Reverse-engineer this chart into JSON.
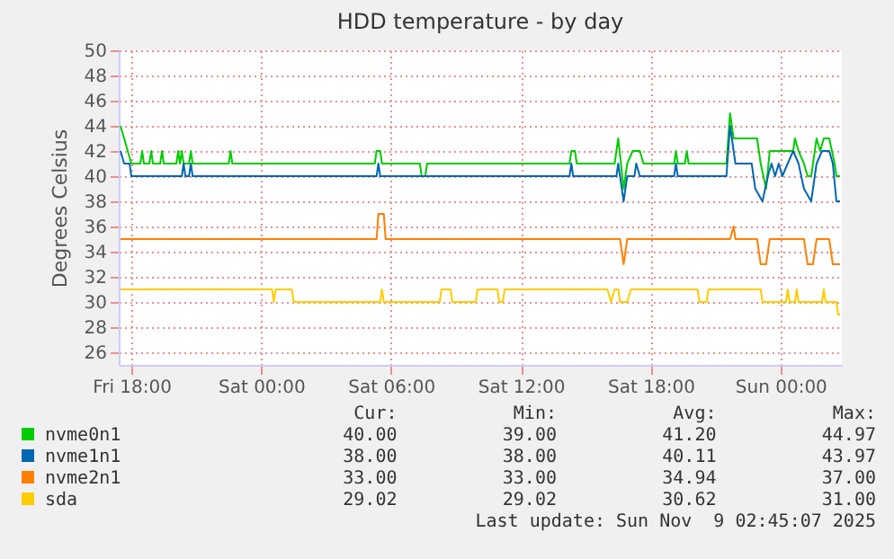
{
  "chart_data": {
    "type": "line",
    "title": "HDD temperature - by day",
    "ylabel": "Degrees Celsius",
    "xlim": [
      "2025-11-07T17:25",
      "2025-11-09T02:50"
    ],
    "xticks": [
      {
        "value": "2025-11-07T18:00",
        "label": "Fri 18:00"
      },
      {
        "value": "2025-11-08T00:00",
        "label": "Sat 00:00"
      },
      {
        "value": "2025-11-08T06:00",
        "label": "Sat 06:00"
      },
      {
        "value": "2025-11-08T12:00",
        "label": "Sat 12:00"
      },
      {
        "value": "2025-11-08T18:00",
        "label": "Sat 18:00"
      },
      {
        "value": "2025-11-09T00:00",
        "label": "Sun 00:00"
      }
    ],
    "ylim": [
      25,
      50
    ],
    "yticks": [
      26,
      28,
      30,
      32,
      34,
      36,
      38,
      40,
      42,
      44,
      46,
      48,
      50
    ],
    "grid": true,
    "legend": "bottom",
    "series": [
      {
        "name": "nvme0n1",
        "color": "#00cc00",
        "x": [
          "2025-11-07T17:30",
          "2025-11-07T17:40",
          "2025-11-07T17:50",
          "2025-11-07T18:00",
          "2025-11-07T18:25",
          "2025-11-07T18:30",
          "2025-11-07T18:35",
          "2025-11-07T18:50",
          "2025-11-07T18:55",
          "2025-11-07T19:00",
          "2025-11-07T19:20",
          "2025-11-07T19:25",
          "2025-11-07T19:30",
          "2025-11-07T20:05",
          "2025-11-07T20:10",
          "2025-11-07T20:15",
          "2025-11-07T20:20",
          "2025-11-07T20:25",
          "2025-11-07T20:40",
          "2025-11-07T20:45",
          "2025-11-07T20:50",
          "2025-11-07T22:30",
          "2025-11-07T22:35",
          "2025-11-07T22:40",
          "2025-11-08T05:15",
          "2025-11-08T05:20",
          "2025-11-08T05:30",
          "2025-11-08T05:35",
          "2025-11-08T07:20",
          "2025-11-08T07:25",
          "2025-11-08T07:35",
          "2025-11-08T07:40",
          "2025-11-08T14:15",
          "2025-11-08T14:20",
          "2025-11-08T14:30",
          "2025-11-08T14:35",
          "2025-11-08T16:20",
          "2025-11-08T16:30",
          "2025-11-08T16:45",
          "2025-11-08T16:55",
          "2025-11-08T17:10",
          "2025-11-08T17:30",
          "2025-11-08T17:40",
          "2025-11-08T19:05",
          "2025-11-08T19:10",
          "2025-11-08T19:15",
          "2025-11-08T19:35",
          "2025-11-08T19:40",
          "2025-11-08T19:45",
          "2025-11-08T21:30",
          "2025-11-08T21:40",
          "2025-11-08T21:50",
          "2025-11-08T22:15",
          "2025-11-08T22:55",
          "2025-11-08T23:05",
          "2025-11-08T23:20",
          "2025-11-08T23:30",
          "2025-11-09T00:35",
          "2025-11-09T00:40",
          "2025-11-09T00:50",
          "2025-11-09T01:05",
          "2025-11-09T01:15",
          "2025-11-09T01:25",
          "2025-11-09T01:40",
          "2025-11-09T01:50",
          "2025-11-09T02:00",
          "2025-11-09T02:15",
          "2025-11-09T02:30",
          "2025-11-09T02:35",
          "2025-11-09T02:45"
        ],
        "values": [
          44,
          43,
          42,
          41,
          41,
          42,
          41,
          41,
          42,
          41,
          41,
          42,
          41,
          41,
          42,
          41,
          42,
          41,
          41,
          42,
          41,
          41,
          42,
          41,
          41,
          42,
          42,
          41,
          41,
          40,
          40,
          41,
          41,
          42,
          42,
          41,
          41,
          43,
          39,
          41,
          42,
          42,
          41,
          41,
          42,
          41,
          41,
          42,
          41,
          41,
          45,
          43,
          43,
          43,
          41,
          39,
          42,
          42,
          43,
          42,
          41,
          40,
          40,
          43,
          42,
          43,
          43,
          41,
          40,
          40
        ]
      },
      {
        "name": "nvme1n1",
        "color": "#0066b3",
        "x": [
          "2025-11-07T17:30",
          "2025-11-07T17:40",
          "2025-11-07T17:55",
          "2025-11-07T18:00",
          "2025-11-07T20:20",
          "2025-11-07T20:25",
          "2025-11-07T20:30",
          "2025-11-07T20:40",
          "2025-11-07T20:45",
          "2025-11-07T20:50",
          "2025-11-08T05:20",
          "2025-11-08T05:25",
          "2025-11-08T05:30",
          "2025-11-08T14:15",
          "2025-11-08T14:20",
          "2025-11-08T14:25",
          "2025-11-08T16:25",
          "2025-11-08T16:30",
          "2025-11-08T16:45",
          "2025-11-08T16:55",
          "2025-11-08T17:15",
          "2025-11-08T17:20",
          "2025-11-08T17:30",
          "2025-11-08T19:05",
          "2025-11-08T19:10",
          "2025-11-08T19:15",
          "2025-11-08T21:30",
          "2025-11-08T21:40",
          "2025-11-08T21:50",
          "2025-11-08T21:55",
          "2025-11-08T22:40",
          "2025-11-08T22:50",
          "2025-11-08T23:10",
          "2025-11-08T23:25",
          "2025-11-08T23:35",
          "2025-11-08T23:45",
          "2025-11-08T23:55",
          "2025-11-09T00:05",
          "2025-11-09T00:20",
          "2025-11-09T00:35",
          "2025-11-09T00:50",
          "2025-11-09T01:05",
          "2025-11-09T01:25",
          "2025-11-09T01:40",
          "2025-11-09T01:55",
          "2025-11-09T02:15",
          "2025-11-09T02:25",
          "2025-11-09T02:35",
          "2025-11-09T02:45"
        ],
        "values": [
          42,
          41,
          41,
          40,
          40,
          41,
          40,
          40,
          41,
          40,
          40,
          41,
          40,
          40,
          41,
          40,
          40,
          41,
          38,
          40,
          40,
          41,
          40,
          40,
          41,
          40,
          40,
          44,
          42,
          41,
          41,
          39,
          38,
          40,
          41,
          40,
          41,
          40,
          41,
          42,
          41,
          39,
          38,
          41,
          42,
          42,
          41,
          38,
          38
        ]
      },
      {
        "name": "nvme2n1",
        "color": "#ff8000",
        "x": [
          "2025-11-07T17:30",
          "2025-11-08T05:20",
          "2025-11-08T05:25",
          "2025-11-08T05:40",
          "2025-11-08T05:45",
          "2025-11-08T16:35",
          "2025-11-08T16:45",
          "2025-11-08T16:55",
          "2025-11-08T21:40",
          "2025-11-08T21:50",
          "2025-11-08T21:55",
          "2025-11-08T22:55",
          "2025-11-08T23:05",
          "2025-11-08T23:20",
          "2025-11-08T23:30",
          "2025-11-09T01:05",
          "2025-11-09T01:15",
          "2025-11-09T01:30",
          "2025-11-09T01:40",
          "2025-11-09T02:15",
          "2025-11-09T02:25",
          "2025-11-09T02:45"
        ],
        "values": [
          35,
          35,
          37,
          37,
          35,
          35,
          33,
          35,
          35,
          36,
          35,
          35,
          33,
          33,
          35,
          35,
          33,
          33,
          35,
          35,
          33,
          33
        ]
      },
      {
        "name": "sda",
        "color": "#ffcc00",
        "x": [
          "2025-11-07T17:30",
          "2025-11-08T00:30",
          "2025-11-08T00:35",
          "2025-11-08T00:40",
          "2025-11-08T01:25",
          "2025-11-08T01:30",
          "2025-11-08T05:30",
          "2025-11-08T05:35",
          "2025-11-08T05:40",
          "2025-11-08T08:15",
          "2025-11-08T08:20",
          "2025-11-08T08:45",
          "2025-11-08T08:50",
          "2025-11-08T09:55",
          "2025-11-08T10:00",
          "2025-11-08T10:55",
          "2025-11-08T11:00",
          "2025-11-08T11:10",
          "2025-11-08T11:15",
          "2025-11-08T16:00",
          "2025-11-08T16:10",
          "2025-11-08T16:20",
          "2025-11-08T16:30",
          "2025-11-08T16:35",
          "2025-11-08T16:55",
          "2025-11-08T17:05",
          "2025-11-08T20:10",
          "2025-11-08T20:15",
          "2025-11-08T20:35",
          "2025-11-08T20:40",
          "2025-11-08T23:05",
          "2025-11-08T23:10",
          "2025-11-09T00:15",
          "2025-11-09T00:20",
          "2025-11-09T00:25",
          "2025-11-09T00:40",
          "2025-11-09T00:45",
          "2025-11-09T00:50",
          "2025-11-09T01:55",
          "2025-11-09T02:00",
          "2025-11-09T02:05",
          "2025-11-09T02:35",
          "2025-11-09T02:40",
          "2025-11-09T02:45"
        ],
        "values": [
          31,
          31,
          30,
          31,
          31,
          30,
          30,
          31,
          30,
          30,
          31,
          31,
          30,
          30,
          31,
          31,
          30,
          30,
          31,
          31,
          30,
          31,
          31,
          30,
          30,
          31,
          31,
          30,
          30,
          31,
          31,
          30,
          30,
          31,
          30,
          30,
          31,
          30,
          30,
          31,
          30,
          30,
          29,
          29
        ]
      }
    ],
    "annotations": [
      "Cur:",
      "Min:",
      "Avg:",
      "Max:",
      "40.00",
      "39.00",
      "41.20",
      "44.97",
      "38.00",
      "38.00",
      "40.11",
      "43.97",
      "33.00",
      "33.00",
      "34.94",
      "37.00",
      "29.02",
      "29.02",
      "30.62",
      "31.00",
      "Last update: Sun Nov  9 02:45:07 2025"
    ]
  }
}
